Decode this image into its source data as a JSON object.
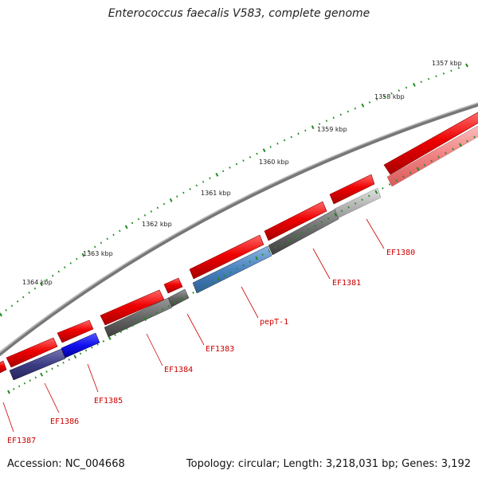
{
  "title": "Enterococcus faecalis V583, complete genome",
  "footer": {
    "accession": "Accession: NC_004668",
    "summary": "Topology: circular; Length: 3,218,031 bp; Genes: 3,192"
  },
  "colors": {
    "backbone": "#777777",
    "ticks": "#228B22",
    "forward_gene": "#ee0000",
    "label": "#cc0000"
  },
  "scale_labels": [
    "1357 kbp",
    "1358 kbp",
    "1359 kbp",
    "1360 kbp",
    "1361 kbp",
    "1362 kbp",
    "1363 kbp",
    "1364 kbp"
  ],
  "gene_labels": [
    "EF1380",
    "EF1381",
    "pepT-1",
    "EF1383",
    "EF1384",
    "EF1385",
    "EF1386",
    "EF1387"
  ]
}
